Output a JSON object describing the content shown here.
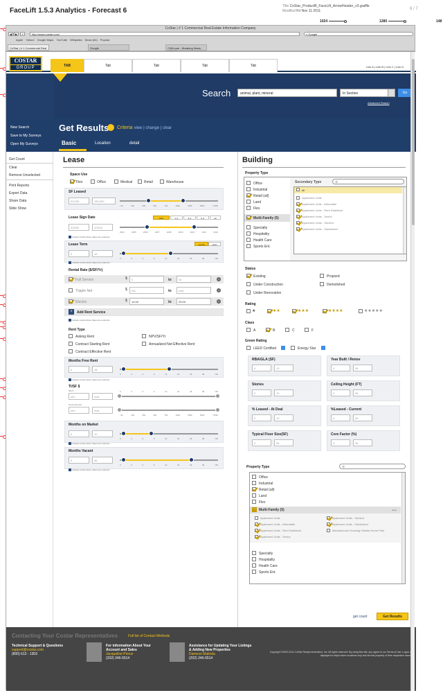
{
  "doc": {
    "title": "FaceLift 1.5.3 Analytics - Forecast 6",
    "file_label": "Title",
    "file_name": "CoStar_ProductB_FaceLift_ArrowHeader_v3.graffle",
    "modified_label": "Modified",
    "modified": "Fri Nov 11 2011",
    "pages": "6 / 7",
    "rulers": [
      "1024",
      "1280",
      "148"
    ]
  },
  "browser": {
    "title": "CoStar | # 1 Commercial Real Estate Information Company",
    "url": "http://www.costar.com/",
    "search_placeholder": "Google",
    "bookmarks": [
      "Apple",
      "Yahoo!",
      "Google Maps",
      "YouTube",
      "Wikipedia",
      "News (64)",
      "Popular"
    ],
    "tabs": [
      "CoStar | # 1 Commercial Real Esta...",
      "Google",
      "CNN.com - Breaking News, U.S, W..."
    ]
  },
  "header": {
    "logo_top": "COSTAR",
    "logo_bottom": "GROUP",
    "tabs": [
      "TAB",
      "Tab",
      "Tab",
      "Tab",
      "Tab"
    ],
    "links": "Link A  |  Link B  |  Link C  |  Link D"
  },
  "search": {
    "label": "Search",
    "value": "animal, plant, mineral",
    "scope": "In Section",
    "go": "Go",
    "advanced": "Advanced Search"
  },
  "results": {
    "title": "Get Results",
    "badge": "",
    "criteria_label": "Criteria",
    "criteria_links": "view  |  change  |  clear",
    "subtabs": [
      "Basic",
      "Location",
      "detail"
    ],
    "side_items": [
      "New Search",
      "Save to My Surveys",
      "Open My Surveys"
    ]
  },
  "leftnav": [
    "Get Count",
    "Clear",
    "Remove Unselected",
    "Print Reports",
    "Export Data",
    "Share Data",
    "Slide Show"
  ],
  "lease": {
    "title": "Lease",
    "space_use_label": "Space Use",
    "space_use": [
      {
        "label": "Flex",
        "checked": true
      },
      {
        "label": "Office",
        "checked": false
      },
      {
        "label": "Medical",
        "checked": false
      },
      {
        "label": "Retail",
        "checked": false
      },
      {
        "label": "Warehouse",
        "checked": false
      }
    ],
    "sf_leased_label": "SF Leased",
    "sf_min": "30,000",
    "sf_max": "150,000",
    "sf_ticks": [
      "<1k",
      "10k",
      "20k",
      "50k",
      "75k",
      "100k",
      "150k",
      "500k",
      ">150k"
    ],
    "sign_date_label": "Lease Sign Date",
    "sign_from": "4/2000",
    "sign_to": "1/2010",
    "sign_ranges": [
      "other",
      "1 yr",
      "3 yr",
      "5 yr",
      "all"
    ],
    "sign_years": [
      "2004",
      "2005",
      "2006",
      "2007",
      "2008",
      "2009",
      "2010",
      "2011",
      "2012"
    ],
    "include_unknown": "Include results where dates are unknown",
    "term_label": "Lease Term",
    "term_from": "0",
    "term_to": "16",
    "term_units": [
      "months",
      "years"
    ],
    "term_ticks": [
      "0",
      "3",
      "6",
      "9",
      "12",
      "24",
      "36",
      "48",
      ">60"
    ],
    "rental_rate_label": "Rental Rate ($/SF/Yr)",
    "rates": [
      {
        "label": "Full Service",
        "checked": true,
        "min": "0",
        "max": "00"
      },
      {
        "label": "Tripple Net",
        "checked": false,
        "min": "min",
        "max": "max"
      },
      {
        "label": "Electric",
        "checked": true,
        "min": "14.00",
        "max": "25.00"
      }
    ],
    "currency": "$",
    "to_label": "to",
    "add_rent": "Add Rent Service",
    "rent_type_label": "Rent Type",
    "rent_types": [
      "Asking Rent",
      "NPV/SF/Yr",
      "Contract Starting Rent",
      "Annualized Net Effective Rent",
      "Contract Effective Rent"
    ],
    "months_free_label": "Months Free Rent",
    "months_free_from": "0",
    "months_free_to": "18",
    "tisf_label": "TI/SF $",
    "tisf_sub1": "SF/Yr",
    "tisf_sub2": "Gross Amount",
    "min_ph": "min",
    "max_ph": "max",
    "tisf_ticks": [
      "0",
      "3",
      "6",
      "9",
      "12",
      "24",
      "36",
      "48",
      ">60"
    ],
    "gross_ticks": [
      "<1k",
      "10k",
      "25k",
      "50k",
      "75k",
      "100k",
      "250k",
      "500k",
      ">150k"
    ],
    "market_label": "Months on Market",
    "market_from": "0",
    "market_to": "10",
    "vacant_label": "Months Vacant",
    "vacant_from": "0",
    "vacant_to": "36"
  },
  "building": {
    "title": "Building",
    "property_type_label": "Property Type",
    "primary": [
      "Office",
      "Industrial",
      "Retail (all)",
      "Land",
      "Flex"
    ],
    "primary_checked": [
      false,
      false,
      true,
      false,
      false
    ],
    "multifamily": "Multi-Family (5)",
    "primary2": [
      "Specialty",
      "Hospitality",
      "Health Care",
      "Sports Ent."
    ],
    "secondary_label": "Secondary Type",
    "secondary_all": "all",
    "secondary": [
      "Apartment Units",
      "Apartment Units - Affordable",
      "Apartment Units - Rent Stabilized",
      "Apartment Units - Senior",
      "Apartment Units - Student",
      "Apartment Units - Subsidized"
    ],
    "secondary_checked": [
      false,
      true,
      true,
      true,
      true,
      true
    ],
    "status_label": "Status",
    "status": [
      "Existing",
      "Propsed",
      "Under Construction",
      "Demolished",
      "Under Renovation"
    ],
    "rating_label": "Rating",
    "stars": [
      "★",
      "★★",
      "★★★",
      "★★★★",
      "★★★★★"
    ],
    "class_label": "Class",
    "classes": [
      "A",
      "B",
      "C",
      "F"
    ],
    "green_label": "Green Rating",
    "leed": "LEED Certified",
    "energy": "Energy Star",
    "fields": [
      {
        "label": "RBA/GLA (SF)",
        "a": "0",
        "b": "10"
      },
      {
        "label": "Year Built / Renov",
        "a": "0",
        "b": "36"
      },
      {
        "label": "Stories",
        "a": "0",
        "b": "10"
      },
      {
        "label": "Ceiling Height (FT)",
        "a": "0",
        "b": "36"
      },
      {
        "label": "% Leased - At Deal",
        "a": "0",
        "b": "10"
      },
      {
        "label": "%Leased - Current",
        "a": "0",
        "b": "36"
      },
      {
        "label": "Typical Floor Size(SF)",
        "a": "0",
        "b": "36"
      },
      {
        "label": "Core Factor (%)",
        "a": "0",
        "b": "36"
      }
    ],
    "pt2_label": "Property Type",
    "pt2_multi": "Multi-Family (5)",
    "pt2_close": "close",
    "pt2_sub_left": [
      "Apartment Units",
      "Apartment Units - Affordable",
      "Apartment Units - Rent Stabilized",
      "Apartment Units - Senior"
    ],
    "pt2_sub_right": [
      "Apartment Units - Student",
      "Apartment Units - Subsidized",
      "Manufactured Housing/ Mobile Home Park"
    ],
    "get_count": "get count",
    "get_results": "Get Results"
  },
  "footer": {
    "title": "Contacting Your Costar Representatives",
    "link": "Full list of Contact Methods",
    "blocks": [
      {
        "l1": "Technical Support & Questions",
        "l2": "support@costar.com",
        "l3": "(800) 613 - 1303"
      },
      {
        "l1": "For information About Your",
        "l2": "Account and Sales",
        "l3": "Jacqueline Prince",
        "l4": "(202) 346-6514"
      },
      {
        "l1": "Assistance for Updating Your Listings",
        "l2": "& Adding New Properties",
        "l3": "Dameon Malinda",
        "l4": "(202) 346-6514"
      }
    ],
    "copyright": "Copyright ©2002-2011 CoStar Realty Information, Inc. All rights reserved. By using this site, you agree to our Terms of Use. Logos are displayed to depict store locations only and are the property of their respective owners."
  }
}
